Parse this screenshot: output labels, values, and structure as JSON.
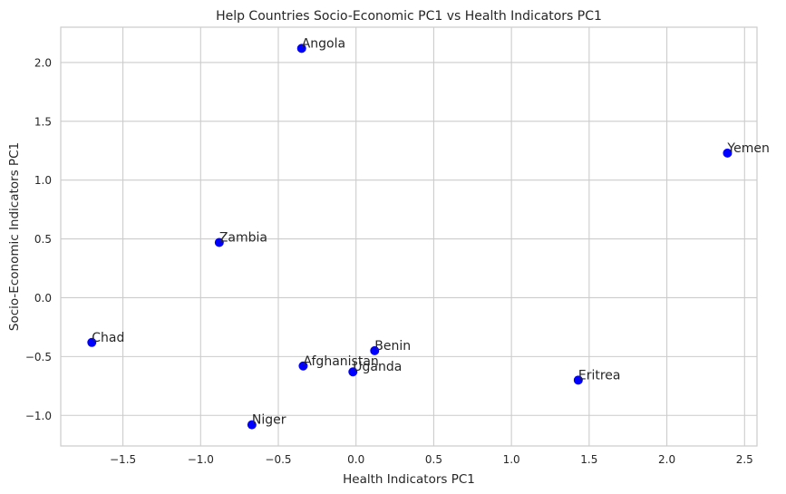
{
  "chart_data": {
    "type": "scatter",
    "title": "Help Countries Socio-Economic PC1 vs Health Indicators PC1",
    "xlabel": "Health Indicators PC1",
    "ylabel": "Socio-Economic Indicators PC1",
    "xlim": [
      -1.9,
      2.58
    ],
    "ylim": [
      -1.26,
      2.3
    ],
    "xticks": [
      -1.5,
      -1.0,
      -0.5,
      0.0,
      0.5,
      1.0,
      1.5,
      2.0,
      2.5
    ],
    "xtick_labels": [
      "−1.5",
      "−1.0",
      "−0.5",
      "0.0",
      "0.5",
      "1.0",
      "1.5",
      "2.0",
      "2.5"
    ],
    "yticks": [
      -1.0,
      -0.5,
      0.0,
      0.5,
      1.0,
      1.5,
      2.0
    ],
    "ytick_labels": [
      "−1.0",
      "−0.5",
      "0.0",
      "0.5",
      "1.0",
      "1.5",
      "2.0"
    ],
    "grid": true,
    "marker_color": "#0000ff",
    "points": [
      {
        "label": "Angola",
        "x": -0.35,
        "y": 2.12
      },
      {
        "label": "Yemen",
        "x": 2.39,
        "y": 1.23
      },
      {
        "label": "Zambia",
        "x": -0.88,
        "y": 0.47
      },
      {
        "label": "Chad",
        "x": -1.7,
        "y": -0.38
      },
      {
        "label": "Benin",
        "x": 0.12,
        "y": -0.45
      },
      {
        "label": "Afghanistan",
        "x": -0.34,
        "y": -0.58
      },
      {
        "label": "Uganda",
        "x": -0.02,
        "y": -0.63
      },
      {
        "label": "Eritrea",
        "x": 1.43,
        "y": -0.7
      },
      {
        "label": "Niger",
        "x": -0.67,
        "y": -1.08
      }
    ]
  }
}
